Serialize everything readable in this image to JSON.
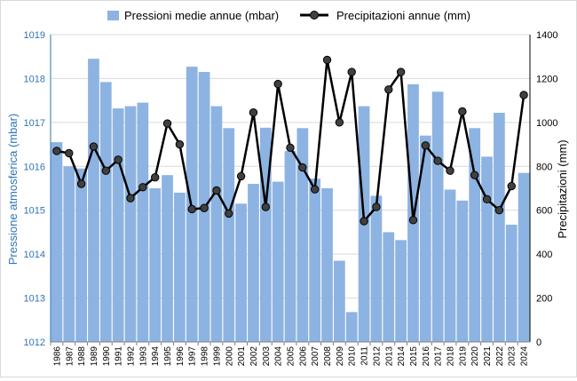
{
  "chart_data": {
    "type": "bar",
    "legend_position": "top",
    "grid": true,
    "colors": {
      "bars": "#8db3e2",
      "line": "#000000",
      "points": "#404040",
      "left_axis": "#2e75b6",
      "gridline": "#d9d9d9"
    },
    "categories": [
      "1986",
      "1987",
      "1988",
      "1989",
      "1990",
      "1991",
      "1992",
      "1993",
      "1994",
      "1995",
      "1996",
      "1997",
      "1998",
      "1999",
      "2000",
      "2001",
      "2002",
      "2003",
      "2004",
      "2005",
      "2006",
      "2007",
      "2008",
      "2009",
      "2010",
      "2011",
      "2012",
      "2013",
      "2014",
      "2015",
      "2016",
      "2017",
      "2018",
      "2019",
      "2020",
      "2021",
      "2022",
      "2023",
      "2024"
    ],
    "series": [
      {
        "name": "Pressioni medie annue (mbar)",
        "type": "bar",
        "axis": "left",
        "values": [
          1016.55,
          1016.0,
          1015.95,
          1018.45,
          1017.92,
          1017.32,
          1017.37,
          1017.45,
          1015.5,
          1015.8,
          1015.4,
          1018.27,
          1018.15,
          1017.37,
          1016.87,
          1015.15,
          1015.6,
          1016.88,
          1015.65,
          1016.35,
          1016.87,
          1015.72,
          1015.5,
          1013.85,
          1012.68,
          1017.37,
          1015.33,
          1014.5,
          1014.32,
          1017.87,
          1016.7,
          1017.7,
          1015.47,
          1015.22,
          1016.87,
          1016.22,
          1017.22,
          1014.67,
          1015.85
        ]
      },
      {
        "name": "Precipitazioni annue (mm)",
        "type": "line",
        "axis": "right",
        "values": [
          870,
          860,
          720,
          890,
          780,
          830,
          655,
          705,
          750,
          995,
          900,
          605,
          610,
          690,
          585,
          755,
          1045,
          615,
          1175,
          885,
          795,
          695,
          1285,
          1000,
          1230,
          550,
          615,
          1150,
          1230,
          555,
          895,
          825,
          780,
          1050,
          760,
          650,
          600,
          710,
          1125
        ]
      }
    ],
    "ylabel": "Pressione atmosferica (mbar)",
    "ylim": [
      1012,
      1019
    ],
    "y_ticks": [
      "1012",
      "1013",
      "1014",
      "1015",
      "1016",
      "1017",
      "1018",
      "1019"
    ],
    "y2label": "Precipitazioni  (mm)",
    "y2lim": [
      0,
      1400
    ],
    "y2_ticks": [
      "0",
      "200",
      "400",
      "600",
      "800",
      "1000",
      "1200",
      "1400"
    ]
  }
}
